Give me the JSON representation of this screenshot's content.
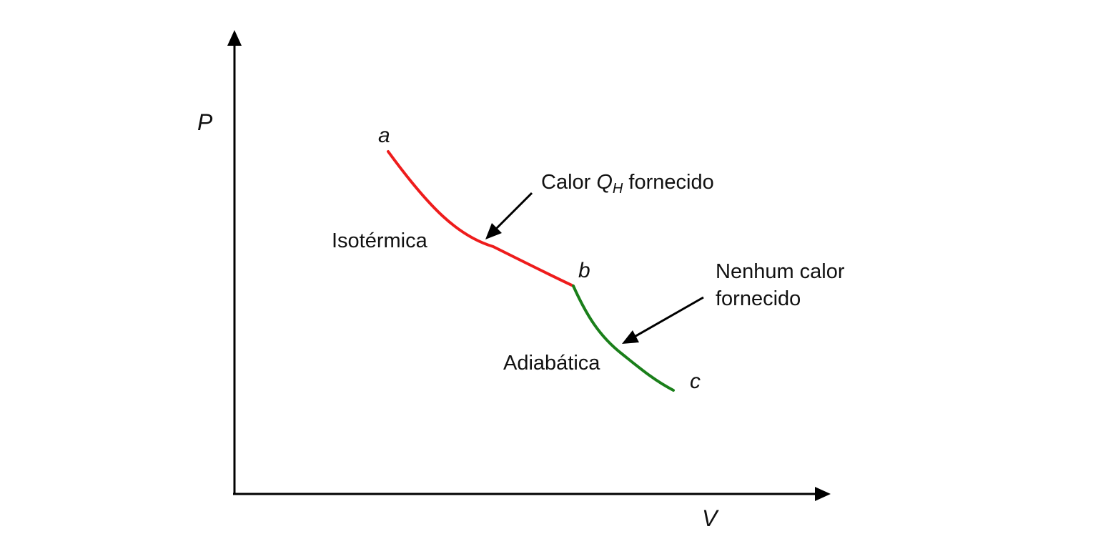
{
  "axes": {
    "y_label": "P",
    "x_label": "V"
  },
  "points": {
    "a": "a",
    "b": "b",
    "c": "c"
  },
  "curves": {
    "isothermal_label": "Isotérmica",
    "adiabatic_label": "Adiabática"
  },
  "annotations": {
    "heat_supplied_prefix": "Calor ",
    "heat_symbol": "Q",
    "heat_subscript": "H",
    "heat_supplied_suffix": " fornecido",
    "no_heat_line1": "Nenhum calor",
    "no_heat_line2": "fornecido"
  },
  "colors": {
    "isothermal": "#ee1c1c",
    "adiabatic": "#1a7f1a",
    "axes": "#000000"
  }
}
